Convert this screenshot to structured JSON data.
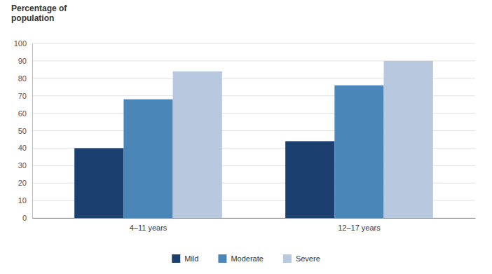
{
  "chart_data": {
    "type": "bar",
    "ylabel": "Percentage of\npopulation",
    "categories": [
      "4–11 years",
      "12–17 years"
    ],
    "series": [
      {
        "name": "Mild",
        "color": "#1b3f6e",
        "values": [
          40,
          44
        ]
      },
      {
        "name": "Moderate",
        "color": "#4a86b8",
        "values": [
          68,
          76
        ]
      },
      {
        "name": "Severe",
        "color": "#b8c8df",
        "values": [
          84,
          90
        ]
      }
    ],
    "ylim": [
      0,
      100
    ],
    "yticks": [
      0,
      10,
      20,
      30,
      40,
      50,
      60,
      70,
      80,
      90,
      100
    ],
    "grid": true,
    "legend": "bottom"
  }
}
